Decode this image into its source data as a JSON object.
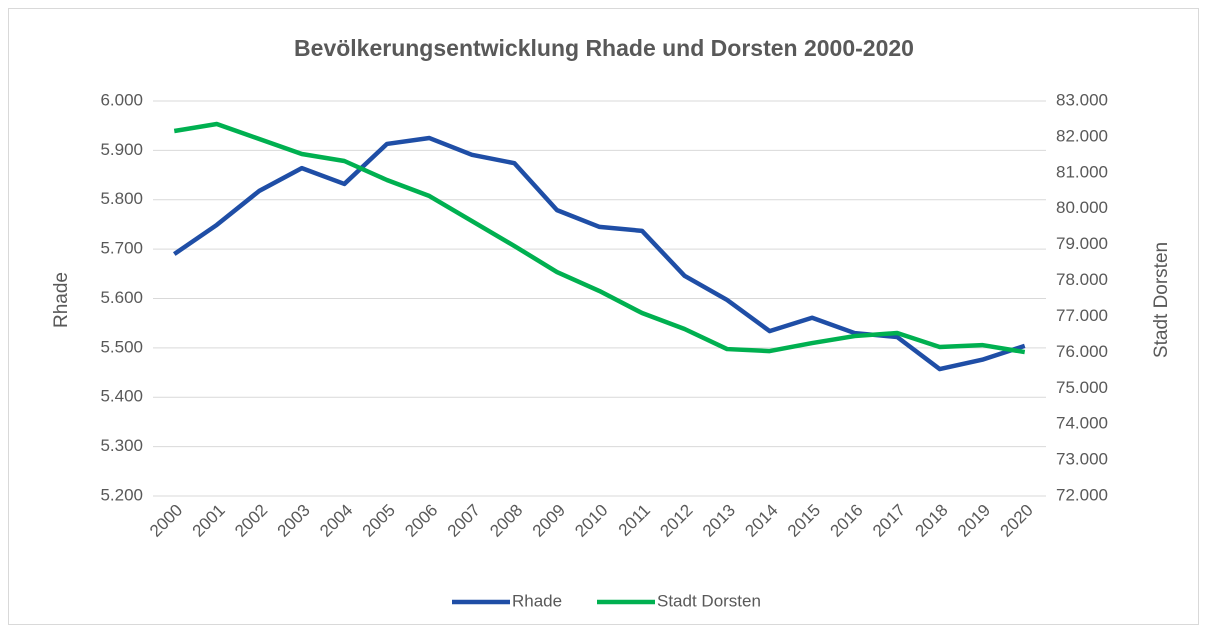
{
  "chart_data": {
    "type": "line",
    "title": "Bevölkerungsentwicklung Rhade und Dorsten 2000-2020",
    "y_label": "Rhade",
    "y2_label": "Stadt Dorsten",
    "categories": [
      "2000",
      "2001",
      "2002",
      "2003",
      "2004",
      "2005",
      "2006",
      "2007",
      "2008",
      "2009",
      "2010",
      "2011",
      "2012",
      "2013",
      "2014",
      "2015",
      "2016",
      "2017",
      "2018",
      "2019",
      "2020"
    ],
    "series": [
      {
        "name": "Rhade",
        "color": "#1f4ea6",
        "values": [
          5690,
          5749,
          5818,
          5864,
          5832,
          5913,
          5925,
          5891,
          5874,
          5779,
          5745,
          5737,
          5646,
          5597,
          5534,
          5561,
          5530,
          5522,
          5457,
          5476,
          5504
        ]
      },
      {
        "name": "Stadt Dorsten",
        "color": "#00b050",
        "axis": "y2",
        "values": [
          82164,
          82359,
          81942,
          81524,
          81329,
          80800,
          80354,
          79657,
          78961,
          78237,
          77708,
          77095,
          76650,
          76092,
          76036,
          76259,
          76454,
          76538,
          76148,
          76203,
          76008
        ]
      }
    ],
    "ylim": [
      5200,
      6000
    ],
    "yticks": [
      {
        "value": 5200,
        "label": "5.200"
      },
      {
        "value": 5300,
        "label": "5.300"
      },
      {
        "value": 5400,
        "label": "5.400"
      },
      {
        "value": 5500,
        "label": "5.500"
      },
      {
        "value": 5600,
        "label": "5.600"
      },
      {
        "value": 5700,
        "label": "5.700"
      },
      {
        "value": 5800,
        "label": "5.800"
      },
      {
        "value": 5900,
        "label": "5.900"
      },
      {
        "value": 6000,
        "label": "6.000"
      }
    ],
    "y2lim": [
      72000,
      83000
    ],
    "y2ticks": [
      {
        "value": 72000,
        "label": "72.000"
      },
      {
        "value": 73000,
        "label": "73.000"
      },
      {
        "value": 74000,
        "label": "74.000"
      },
      {
        "value": 75000,
        "label": "75.000"
      },
      {
        "value": 76000,
        "label": "76.000"
      },
      {
        "value": 77000,
        "label": "77.000"
      },
      {
        "value": 78000,
        "label": "78.000"
      },
      {
        "value": 79000,
        "label": "79.000"
      },
      {
        "value": 80000,
        "label": "80.000"
      },
      {
        "value": 81000,
        "label": "81.000"
      },
      {
        "value": 82000,
        "label": "82.000"
      },
      {
        "value": 83000,
        "label": "83.000"
      }
    ],
    "grid": true,
    "legend": "bottom"
  }
}
